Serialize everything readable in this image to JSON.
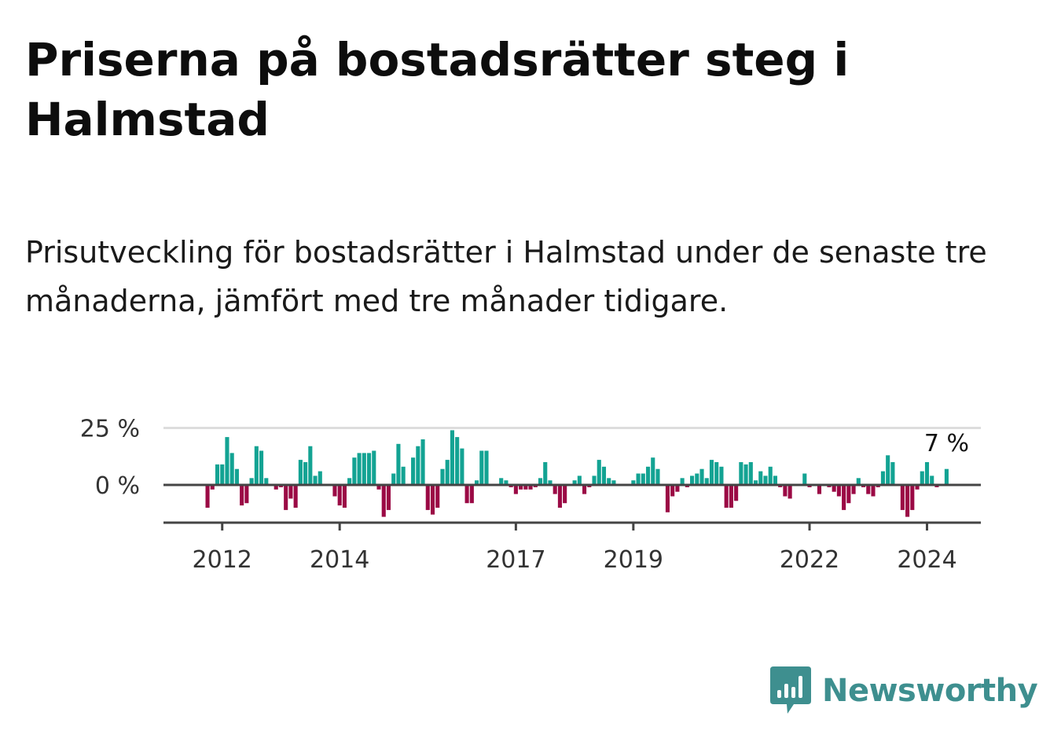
{
  "title": "Priserna på bostadsrätter steg i Halmstad",
  "subtitle": "Prisutveckling för bostadsrätter i Halmstad under de senaste tre månaderna, jämfört med tre månader tidigare.",
  "brand": {
    "name": "Newsworthy",
    "color": "#3e8f8f"
  },
  "colors": {
    "positive": "#13a393",
    "negative": "#9b0a45",
    "baseline": "#444444",
    "grid": "#dddddd"
  },
  "chart_data": {
    "type": "bar",
    "x_start": "2011-01",
    "x_end": "2024-12",
    "x_tick_labels": [
      "2012",
      "2014",
      "2017",
      "2019",
      "2022",
      "2024"
    ],
    "y_tick_labels": [
      "25 %",
      "0 %"
    ],
    "y_ticks": [
      25,
      0
    ],
    "ylim": [
      -16,
      25
    ],
    "grid": true,
    "last_value_label": "7 %",
    "points": [
      {
        "x": "2011-10",
        "y": -10
      },
      {
        "x": "2011-11",
        "y": -2
      },
      {
        "x": "2011-12",
        "y": 9
      },
      {
        "x": "2012-01",
        "y": 9
      },
      {
        "x": "2012-02",
        "y": 21
      },
      {
        "x": "2012-03",
        "y": 14
      },
      {
        "x": "2012-04",
        "y": 7
      },
      {
        "x": "2012-05",
        "y": -9
      },
      {
        "x": "2012-06",
        "y": -8
      },
      {
        "x": "2012-07",
        "y": 3
      },
      {
        "x": "2012-08",
        "y": 17
      },
      {
        "x": "2012-09",
        "y": 15
      },
      {
        "x": "2012-10",
        "y": 3
      },
      {
        "x": "2012-11",
        "y": 0
      },
      {
        "x": "2012-12",
        "y": -2
      },
      {
        "x": "2013-01",
        "y": -1
      },
      {
        "x": "2013-02",
        "y": -11
      },
      {
        "x": "2013-03",
        "y": -6
      },
      {
        "x": "2013-04",
        "y": -10
      },
      {
        "x": "2013-05",
        "y": 11
      },
      {
        "x": "2013-06",
        "y": 10
      },
      {
        "x": "2013-07",
        "y": 17
      },
      {
        "x": "2013-08",
        "y": 4
      },
      {
        "x": "2013-09",
        "y": 6
      },
      {
        "x": "2013-10",
        "y": 0
      },
      {
        "x": "2013-11",
        "y": 0
      },
      {
        "x": "2013-12",
        "y": -5
      },
      {
        "x": "2014-01",
        "y": -9
      },
      {
        "x": "2014-02",
        "y": -10
      },
      {
        "x": "2014-03",
        "y": 3
      },
      {
        "x": "2014-04",
        "y": 12
      },
      {
        "x": "2014-05",
        "y": 14
      },
      {
        "x": "2014-06",
        "y": 14
      },
      {
        "x": "2014-07",
        "y": 14
      },
      {
        "x": "2014-08",
        "y": 15
      },
      {
        "x": "2014-09",
        "y": -2
      },
      {
        "x": "2014-10",
        "y": -14
      },
      {
        "x": "2014-11",
        "y": -11
      },
      {
        "x": "2014-12",
        "y": 5
      },
      {
        "x": "2015-01",
        "y": 18
      },
      {
        "x": "2015-02",
        "y": 8
      },
      {
        "x": "2015-03",
        "y": 0
      },
      {
        "x": "2015-04",
        "y": 12
      },
      {
        "x": "2015-05",
        "y": 17
      },
      {
        "x": "2015-06",
        "y": 20
      },
      {
        "x": "2015-07",
        "y": -11
      },
      {
        "x": "2015-08",
        "y": -13
      },
      {
        "x": "2015-09",
        "y": -10
      },
      {
        "x": "2015-10",
        "y": 7
      },
      {
        "x": "2015-11",
        "y": 11
      },
      {
        "x": "2015-12",
        "y": 24
      },
      {
        "x": "2016-01",
        "y": 21
      },
      {
        "x": "2016-02",
        "y": 16
      },
      {
        "x": "2016-03",
        "y": -8
      },
      {
        "x": "2016-04",
        "y": -8
      },
      {
        "x": "2016-05",
        "y": 2
      },
      {
        "x": "2016-06",
        "y": 15
      },
      {
        "x": "2016-07",
        "y": 15
      },
      {
        "x": "2016-08",
        "y": 0
      },
      {
        "x": "2016-09",
        "y": 0
      },
      {
        "x": "2016-10",
        "y": 3
      },
      {
        "x": "2016-11",
        "y": 2
      },
      {
        "x": "2016-12",
        "y": -1
      },
      {
        "x": "2017-01",
        "y": -4
      },
      {
        "x": "2017-02",
        "y": -2
      },
      {
        "x": "2017-03",
        "y": -2
      },
      {
        "x": "2017-04",
        "y": -2
      },
      {
        "x": "2017-05",
        "y": -1
      },
      {
        "x": "2017-06",
        "y": 3
      },
      {
        "x": "2017-07",
        "y": 10
      },
      {
        "x": "2017-08",
        "y": 2
      },
      {
        "x": "2017-09",
        "y": -4
      },
      {
        "x": "2017-10",
        "y": -10
      },
      {
        "x": "2017-11",
        "y": -8
      },
      {
        "x": "2017-12",
        "y": 0
      },
      {
        "x": "2018-01",
        "y": 2
      },
      {
        "x": "2018-02",
        "y": 4
      },
      {
        "x": "2018-03",
        "y": -4
      },
      {
        "x": "2018-04",
        "y": -1
      },
      {
        "x": "2018-05",
        "y": 4
      },
      {
        "x": "2018-06",
        "y": 11
      },
      {
        "x": "2018-07",
        "y": 8
      },
      {
        "x": "2018-08",
        "y": 3
      },
      {
        "x": "2018-09",
        "y": 2
      },
      {
        "x": "2018-10",
        "y": 0
      },
      {
        "x": "2018-11",
        "y": 0
      },
      {
        "x": "2018-12",
        "y": 0
      },
      {
        "x": "2019-01",
        "y": 2
      },
      {
        "x": "2019-02",
        "y": 5
      },
      {
        "x": "2019-03",
        "y": 5
      },
      {
        "x": "2019-04",
        "y": 8
      },
      {
        "x": "2019-05",
        "y": 12
      },
      {
        "x": "2019-06",
        "y": 7
      },
      {
        "x": "2019-07",
        "y": 0
      },
      {
        "x": "2019-08",
        "y": -12
      },
      {
        "x": "2019-09",
        "y": -5
      },
      {
        "x": "2019-10",
        "y": -3
      },
      {
        "x": "2019-11",
        "y": 3
      },
      {
        "x": "2019-12",
        "y": -1
      },
      {
        "x": "2020-01",
        "y": 4
      },
      {
        "x": "2020-02",
        "y": 5
      },
      {
        "x": "2020-03",
        "y": 7
      },
      {
        "x": "2020-04",
        "y": 3
      },
      {
        "x": "2020-05",
        "y": 11
      },
      {
        "x": "2020-06",
        "y": 10
      },
      {
        "x": "2020-07",
        "y": 8
      },
      {
        "x": "2020-08",
        "y": -10
      },
      {
        "x": "2020-09",
        "y": -10
      },
      {
        "x": "2020-10",
        "y": -7
      },
      {
        "x": "2020-11",
        "y": 10
      },
      {
        "x": "2020-12",
        "y": 9
      },
      {
        "x": "2021-01",
        "y": 10
      },
      {
        "x": "2021-02",
        "y": 2
      },
      {
        "x": "2021-03",
        "y": 6
      },
      {
        "x": "2021-04",
        "y": 4
      },
      {
        "x": "2021-05",
        "y": 8
      },
      {
        "x": "2021-06",
        "y": 4
      },
      {
        "x": "2021-07",
        "y": -1
      },
      {
        "x": "2021-08",
        "y": -5
      },
      {
        "x": "2021-09",
        "y": -6
      },
      {
        "x": "2021-10",
        "y": 0
      },
      {
        "x": "2021-11",
        "y": 0
      },
      {
        "x": "2021-12",
        "y": 5
      },
      {
        "x": "2022-01",
        "y": -1
      },
      {
        "x": "2022-02",
        "y": 0
      },
      {
        "x": "2022-03",
        "y": -4
      },
      {
        "x": "2022-04",
        "y": 0
      },
      {
        "x": "2022-05",
        "y": -1
      },
      {
        "x": "2022-06",
        "y": -3
      },
      {
        "x": "2022-07",
        "y": -5
      },
      {
        "x": "2022-08",
        "y": -11
      },
      {
        "x": "2022-09",
        "y": -8
      },
      {
        "x": "2022-10",
        "y": -4
      },
      {
        "x": "2022-11",
        "y": 3
      },
      {
        "x": "2022-12",
        "y": -1
      },
      {
        "x": "2023-01",
        "y": -4
      },
      {
        "x": "2023-02",
        "y": -5
      },
      {
        "x": "2023-03",
        "y": -1
      },
      {
        "x": "2023-04",
        "y": 6
      },
      {
        "x": "2023-05",
        "y": 13
      },
      {
        "x": "2023-06",
        "y": 10
      },
      {
        "x": "2023-07",
        "y": 0
      },
      {
        "x": "2023-08",
        "y": -11
      },
      {
        "x": "2023-09",
        "y": -14
      },
      {
        "x": "2023-10",
        "y": -11
      },
      {
        "x": "2023-11",
        "y": -2
      },
      {
        "x": "2023-12",
        "y": 6
      },
      {
        "x": "2024-01",
        "y": 10
      },
      {
        "x": "2024-02",
        "y": 4
      },
      {
        "x": "2024-03",
        "y": -1
      },
      {
        "x": "2024-04",
        "y": 0
      },
      {
        "x": "2024-05",
        "y": 7
      }
    ]
  }
}
